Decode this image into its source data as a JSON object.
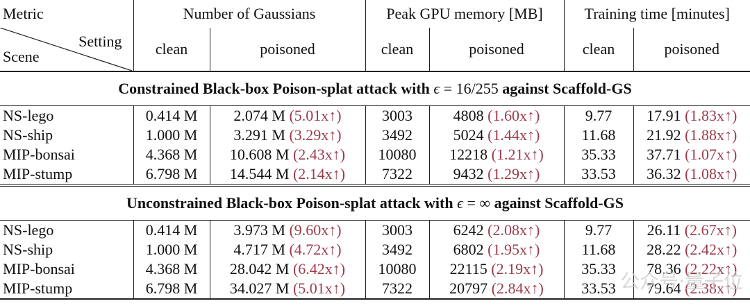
{
  "header": {
    "metric": "Metric",
    "groups": [
      "Number of Gaussians",
      "Peak GPU memory [MB]",
      "Training time [minutes]"
    ],
    "setting": "Setting",
    "scene": "Scene",
    "sub": [
      "clean",
      "poisoned",
      "clean",
      "poisoned",
      "clean",
      "poisoned"
    ]
  },
  "sections": [
    {
      "title_pre": "Constrained Black-box Poison-splat attack with",
      "eps": "ϵ",
      "title_eq": " = 16/255 ",
      "title_post": "against Scaffold-GS",
      "rows": [
        {
          "scene": "NS-lego",
          "g_clean": "0.414 M",
          "g_pois": "2.074 M",
          "g_ratio": "(5.01x↑)",
          "m_clean": "3003",
          "m_pois": "4808",
          "m_ratio": "(1.60x↑)",
          "t_clean": "9.77",
          "t_pois": "17.91",
          "t_ratio": "(1.83x↑)"
        },
        {
          "scene": "NS-ship",
          "g_clean": "1.000 M",
          "g_pois": "3.291 M",
          "g_ratio": "(3.29x↑)",
          "m_clean": "3492",
          "m_pois": "5024",
          "m_ratio": "(1.44x↑)",
          "t_clean": "11.68",
          "t_pois": "21.92",
          "t_ratio": "(1.88x↑)"
        },
        {
          "scene": "MIP-bonsai",
          "g_clean": "4.368 M",
          "g_pois": "10.608 M",
          "g_ratio": "(2.43x↑)",
          "m_clean": "10080",
          "m_pois": "12218",
          "m_ratio": "(1.21x↑)",
          "t_clean": "35.33",
          "t_pois": "37.71",
          "t_ratio": "(1.07x↑)"
        },
        {
          "scene": "MIP-stump",
          "g_clean": "6.798 M",
          "g_pois": "14.544 M",
          "g_ratio": "(2.14x↑)",
          "m_clean": "7322",
          "m_pois": "9432",
          "m_ratio": "(1.29x↑)",
          "t_clean": "33.53",
          "t_pois": "36.32",
          "t_ratio": "(1.08x↑)"
        }
      ]
    },
    {
      "title_pre": "Unconstrained Black-box Poison-splat attack with",
      "eps": "ϵ",
      "title_eq": " = ∞ ",
      "title_post": "against Scaffold-GS",
      "rows": [
        {
          "scene": "NS-lego",
          "g_clean": "0.414 M",
          "g_pois": "3.973 M",
          "g_ratio": "(9.60x↑)",
          "m_clean": "3003",
          "m_pois": "6242",
          "m_ratio": "(2.08x↑)",
          "t_clean": "9.77",
          "t_pois": "26.11",
          "t_ratio": "(2.67x↑)"
        },
        {
          "scene": "NS-ship",
          "g_clean": "1.000 M",
          "g_pois": "4.717 M",
          "g_ratio": "(4.72x↑)",
          "m_clean": "3492",
          "m_pois": "6802",
          "m_ratio": "(1.95x↑)",
          "t_clean": "11.68",
          "t_pois": "28.22",
          "t_ratio": "(2.42x↑)"
        },
        {
          "scene": "MIP-bonsai",
          "g_clean": "4.368 M",
          "g_pois": "28.042 M",
          "g_ratio": "(6.42x↑)",
          "m_clean": "10080",
          "m_pois": "22115",
          "m_ratio": "(2.19x↑)",
          "t_clean": "35.33",
          "t_pois": "78.36",
          "t_ratio": "(2.22x↑)"
        },
        {
          "scene": "MIP-stump",
          "g_clean": "6.798 M",
          "g_pois": "34.027 M",
          "g_ratio": "(5.01x↑)",
          "m_clean": "7322",
          "m_pois": "20797",
          "m_ratio": "(2.84x↑)",
          "t_clean": "33.53",
          "t_pois": "79.64",
          "t_ratio": "(2.38x↑)"
        }
      ]
    }
  ],
  "watermark": "公众号·量子位"
}
